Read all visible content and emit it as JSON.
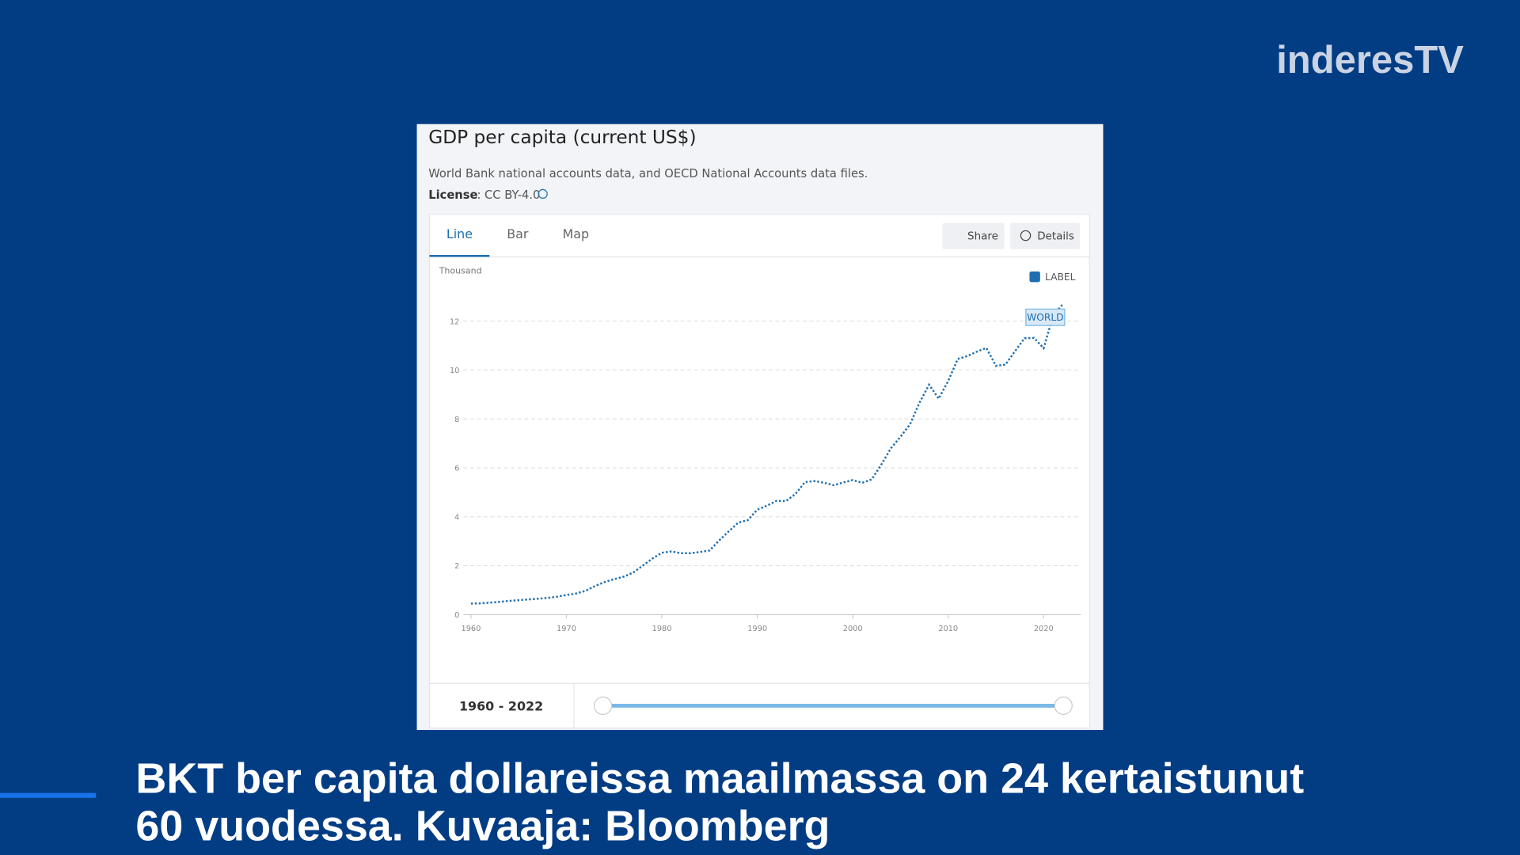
{
  "brand": "inderesTV",
  "panel": {
    "title": "GDP per capita (current US$)",
    "source": "World Bank national accounts data, and OECD National Accounts data files.",
    "license_key": "License",
    "license_value": ": CC BY-4.0",
    "tabs": [
      "Line",
      "Bar",
      "Map"
    ],
    "buttons": [
      "Share",
      "Details"
    ],
    "label_toggle": "LABEL",
    "range": "1960 - 2022"
  },
  "caption": [
    "BKT ber capita dollareissa maailmassa on 24 kertaistunut",
    "60 vuodessa. Kuvaaja: Bloomberg"
  ],
  "chart_data": {
    "type": "line",
    "y_unit": "Thousand",
    "x": [
      1960,
      1961,
      1962,
      1963,
      1964,
      1965,
      1966,
      1967,
      1968,
      1969,
      1970,
      1971,
      1972,
      1973,
      1974,
      1975,
      1976,
      1977,
      1978,
      1979,
      1980,
      1981,
      1982,
      1983,
      1984,
      1985,
      1986,
      1987,
      1988,
      1989,
      1990,
      1991,
      1992,
      1993,
      1994,
      1995,
      1996,
      1997,
      1998,
      1999,
      2000,
      2001,
      2002,
      2003,
      2004,
      2005,
      2006,
      2007,
      2008,
      2009,
      2010,
      2011,
      2012,
      2013,
      2014,
      2015,
      2016,
      2017,
      2018,
      2019,
      2020,
      2021,
      2022
    ],
    "series": [
      {
        "name": "WORLD",
        "color": "#1f6fb0",
        "values": [
          0.45,
          0.46,
          0.49,
          0.52,
          0.56,
          0.59,
          0.62,
          0.65,
          0.68,
          0.73,
          0.8,
          0.86,
          0.97,
          1.17,
          1.33,
          1.45,
          1.55,
          1.72,
          2.0,
          2.29,
          2.53,
          2.58,
          2.51,
          2.51,
          2.56,
          2.62,
          3.03,
          3.4,
          3.76,
          3.86,
          4.29,
          4.45,
          4.65,
          4.64,
          4.93,
          5.42,
          5.46,
          5.39,
          5.29,
          5.4,
          5.5,
          5.39,
          5.53,
          6.14,
          6.8,
          7.27,
          7.78,
          8.67,
          9.4,
          8.83,
          9.55,
          10.45,
          10.57,
          10.75,
          10.9,
          10.17,
          10.22,
          10.77,
          11.3,
          11.31,
          10.89,
          12.23,
          12.69
        ]
      }
    ],
    "xlim": [
      1959.2,
      2023.9
    ],
    "xticks": [
      1960,
      1970,
      1980,
      1990,
      2000,
      2010,
      2020
    ],
    "ylim": [
      0,
      13
    ],
    "yticks": [
      0,
      2,
      4,
      6,
      8,
      10,
      12
    ],
    "grid": true
  }
}
